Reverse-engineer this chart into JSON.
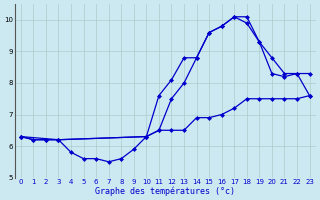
{
  "title": "Graphe des températures (°c)",
  "background_color": "#cce8f0",
  "grid_color": "#aacccc",
  "line_color": "#0000cc",
  "xlim": [
    -0.5,
    23.5
  ],
  "ylim": [
    5,
    10.5
  ],
  "yticks": [
    5,
    6,
    7,
    8,
    9,
    10
  ],
  "xticks": [
    0,
    1,
    2,
    3,
    4,
    5,
    6,
    7,
    8,
    9,
    10,
    11,
    12,
    13,
    14,
    15,
    16,
    17,
    18,
    19,
    20,
    21,
    22,
    23
  ],
  "curve1_x": [
    0,
    1,
    2,
    3,
    4,
    5,
    6,
    7,
    8,
    9,
    10,
    11,
    12,
    13,
    14,
    15,
    16,
    17,
    18,
    19,
    20,
    21,
    22,
    23
  ],
  "curve1_y": [
    6.3,
    6.2,
    6.2,
    6.2,
    5.8,
    5.6,
    5.6,
    5.5,
    5.6,
    5.9,
    6.3,
    6.5,
    6.5,
    6.5,
    6.9,
    6.9,
    7.0,
    7.2,
    7.5,
    7.5,
    7.5,
    7.5,
    7.5,
    7.6
  ],
  "curve2_x": [
    0,
    1,
    2,
    3,
    10,
    11,
    12,
    13,
    14,
    15,
    16,
    17,
    18,
    19,
    20,
    21,
    22,
    23
  ],
  "curve2_y": [
    6.3,
    6.2,
    6.2,
    6.2,
    6.3,
    6.5,
    7.5,
    8.0,
    8.8,
    9.6,
    9.8,
    10.1,
    10.1,
    9.3,
    8.3,
    8.2,
    8.3,
    8.3
  ],
  "curve3_x": [
    0,
    3,
    10,
    11,
    12,
    13,
    14,
    15,
    16,
    17,
    18,
    19,
    20,
    21,
    22,
    23
  ],
  "curve3_y": [
    6.3,
    6.2,
    6.3,
    7.6,
    8.1,
    8.8,
    8.8,
    9.6,
    9.8,
    10.1,
    9.9,
    9.3,
    8.8,
    8.3,
    8.3,
    7.6
  ]
}
